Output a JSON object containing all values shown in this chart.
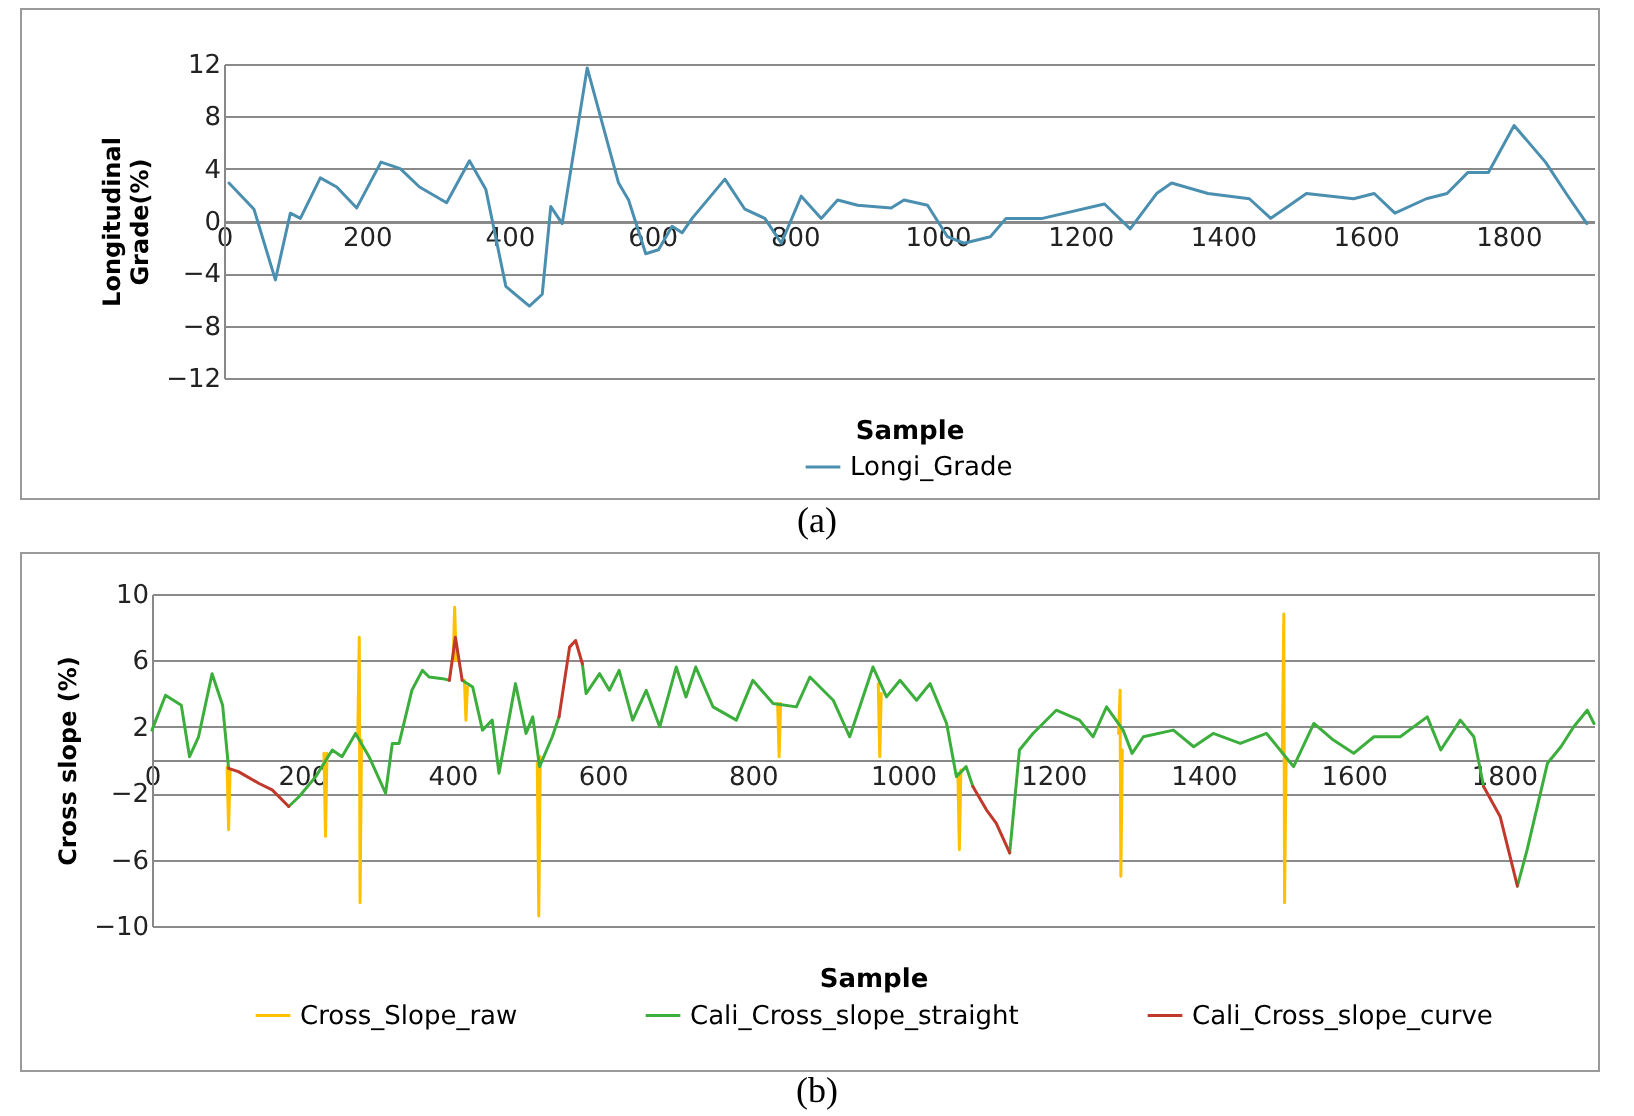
{
  "chart_data": [
    {
      "type": "line",
      "xlabel": "Sample",
      "ylabel": "Longitudinal Grade(%)",
      "xlim": [
        0,
        1920
      ],
      "xticks": [
        0,
        200,
        400,
        600,
        800,
        1000,
        1200,
        1400,
        1600,
        1800
      ],
      "ylim": [
        -12,
        12
      ],
      "yticks": [
        -12,
        -8,
        -4,
        0,
        4,
        8,
        12
      ],
      "grid": "y",
      "legend": "bottom",
      "annotations": [
        "(a)"
      ],
      "series": [
        {
          "name": "Longi_Grade",
          "color": "#4a8fb0",
          "x": [
            7,
            42,
            72,
            93,
            107,
            135,
            158,
            186,
            220,
            247,
            274,
            312,
            344,
            367,
            395,
            428,
            446,
            458,
            474,
            509,
            553,
            567,
            591,
            609,
            628,
            642,
            656,
            702,
            730,
            758,
            781,
            809,
            837,
            860,
            888,
            935,
            953,
            986,
            1014,
            1037,
            1074,
            1096,
            1147,
            1234,
            1270,
            1307,
            1328,
            1379,
            1437,
            1467,
            1496,
            1517,
            1583,
            1612,
            1641,
            1685,
            1714,
            1743,
            1772,
            1808,
            1852,
            1881,
            1910
          ],
          "values": [
            2.9,
            0.9,
            -4.5,
            0.6,
            0.2,
            3.3,
            2.6,
            1.0,
            4.5,
            4.0,
            2.6,
            1.4,
            4.6,
            2.4,
            -5,
            -6.5,
            -5.6,
            1.1,
            -0.2,
            11.7,
            2.9,
            1.6,
            -2.5,
            -2.2,
            -0.4,
            -0.9,
            0.2,
            3.2,
            0.9,
            0.2,
            -1.7,
            1.9,
            0.2,
            1.6,
            1.2,
            1.0,
            1.6,
            1.2,
            -1.2,
            -1.7,
            -1.2,
            0.2,
            0.2,
            1.3,
            -0.6,
            2.1,
            2.9,
            2.1,
            1.7,
            0.2,
            1.3,
            2.1,
            1.7,
            2.1,
            0.6,
            1.7,
            2.1,
            3.7,
            3.7,
            7.3,
            4.5,
            2.1,
            -0.2
          ]
        }
      ]
    },
    {
      "type": "line",
      "xlabel": "Sample",
      "ylabel": "Cross slope (%)",
      "xlim": [
        0,
        1920
      ],
      "xticks": [
        0,
        200,
        400,
        600,
        800,
        1000,
        1200,
        1400,
        1600,
        1800
      ],
      "ylim": [
        -10,
        10
      ],
      "yticks": [
        -10,
        -6,
        -2,
        2,
        6,
        10
      ],
      "grid": "y",
      "legend": "bottom",
      "annotations": [
        "(b)"
      ],
      "series": [
        {
          "name": "Cross_Slope_raw",
          "color": "#ffc000",
          "x": [
            100,
            102,
            104,
            150,
            229,
            231,
            233,
            250,
            274,
            276,
            277,
            279,
            350,
            401,
            403,
            405,
            410,
            416,
            418,
            420,
            450,
            513,
            515,
            517,
            600,
            833,
            835,
            837,
            900,
            967,
            969,
            971,
            1000,
            1073,
            1075,
            1077,
            1200,
            1287,
            1289,
            1290,
            1292,
            1400,
            1505,
            1507,
            1508,
            1510
          ],
          "values": [
            -0.4,
            -4.2,
            -0.6,
            null,
            0.4,
            -4.6,
            0.4,
            null,
            1.6,
            7.4,
            -8.6,
            1.2,
            null,
            6,
            9.2,
            6,
            null,
            4.8,
            2.4,
            4.4,
            null,
            -0.2,
            -9.4,
            0.2,
            null,
            3.4,
            0.2,
            3.4,
            null,
            4.6,
            0.2,
            4,
            null,
            -0.8,
            -5.4,
            -0.6,
            null,
            1.6,
            4.2,
            -7,
            0.6,
            null,
            0.4,
            8.8,
            -8.6,
            0
          ]
        },
        {
          "name": "Cali_Cross_slope_straight",
          "color": "#3cae3c",
          "x": [
            0,
            18,
            39,
            50,
            62,
            80,
            94,
            102,
            140,
            182,
            196,
            218,
            240,
            253,
            271,
            289,
            311,
            320,
            329,
            346,
            360,
            369,
            387,
            396,
            400,
            413,
            427,
            440,
            453,
            462,
            484,
            498,
            507,
            516,
            533,
            542,
            560,
            573,
            578,
            596,
            609,
            622,
            640,
            658,
            676,
            698,
            711,
            724,
            747,
            778,
            800,
            827,
            858,
            876,
            907,
            929,
            960,
            978,
            996,
            1018,
            1036,
            1058,
            1071,
            1084,
            1093,
            1120,
            1142,
            1155,
            1173,
            1204,
            1235,
            1253,
            1271,
            1293,
            1305,
            1320,
            1360,
            1387,
            1413,
            1449,
            1484,
            1520,
            1547,
            1573,
            1600,
            1627,
            1662,
            1698,
            1716,
            1742,
            1760,
            1773,
            1800,
            1818,
            1831,
            1858,
            1876,
            1893,
            1911,
            1920
          ],
          "values": [
            1.8,
            3.9,
            3.3,
            0.2,
            1.4,
            5.2,
            3.3,
            -0.5,
            null,
            -2.8,
            -2.2,
            -1,
            0.6,
            0.2,
            1.6,
            0.2,
            -2,
            1,
            1,
            4.2,
            5.4,
            5,
            4.9,
            4.8,
            null,
            4.8,
            4.4,
            1.8,
            2.4,
            -0.8,
            4.6,
            1.6,
            2.6,
            -0.4,
            1.4,
            2.6,
            null,
            5.8,
            4,
            5.2,
            4.2,
            5.4,
            2.4,
            4.2,
            2,
            5.6,
            3.8,
            5.6,
            3.2,
            2.4,
            4.8,
            3.4,
            3.2,
            5,
            3.6,
            1.4,
            5.6,
            3.8,
            4.8,
            3.6,
            4.6,
            2.2,
            -1,
            -0.4,
            -1.6,
            null,
            -5.6,
            0.6,
            1.6,
            3,
            2.4,
            1.4,
            3.2,
            1.8,
            0.4,
            1.4,
            1.8,
            0.8,
            1.6,
            1,
            1.6,
            -0.4,
            2.2,
            1.2,
            0.4,
            1.4,
            1.4,
            2.6,
            0.6,
            2.4,
            1.4,
            -1.6,
            null,
            -7.6,
            -5.4,
            -0.2,
            0.8,
            2,
            3,
            2.2
          ]
        },
        {
          "name": "Cali_Cross_slope_curve",
          "color": "#c0392b",
          "x": [
            102,
            115,
            142,
            160,
            182,
            190,
            396,
            404,
            413,
            450,
            542,
            556,
            564,
            573,
            800,
            1093,
            1111,
            1124,
            1142,
            1500,
            1773,
            1795,
            1818
          ],
          "values": [
            -0.5,
            -0.7,
            -1.4,
            -1.8,
            -2.8,
            null,
            4.8,
            7.4,
            4.8,
            null,
            2.6,
            6.8,
            7.2,
            5.8,
            null,
            -1.6,
            -3,
            -3.8,
            -5.6,
            null,
            -1.6,
            -3.4,
            -7.6
          ]
        }
      ]
    }
  ]
}
